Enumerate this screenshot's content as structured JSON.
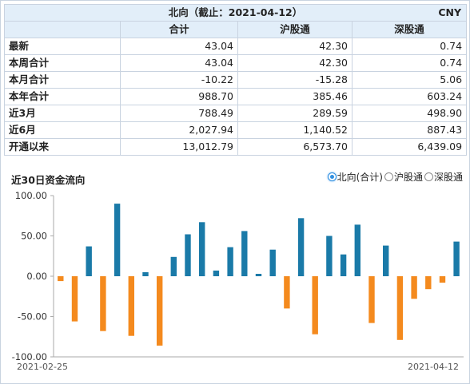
{
  "header": {
    "title": "北向（截止：2021-04-12）",
    "currency": "CNY"
  },
  "table": {
    "columns": [
      "合计",
      "沪股通",
      "深股通"
    ],
    "rows": [
      {
        "label": "最新",
        "values": [
          "43.04",
          "42.30",
          "0.74"
        ]
      },
      {
        "label": "本周合计",
        "values": [
          "43.04",
          "42.30",
          "0.74"
        ]
      },
      {
        "label": "本月合计",
        "values": [
          "-10.22",
          "-15.28",
          "5.06"
        ]
      },
      {
        "label": "本年合计",
        "values": [
          "988.70",
          "385.46",
          "603.24"
        ]
      },
      {
        "label": "近3月",
        "values": [
          "788.49",
          "289.59",
          "498.90"
        ]
      },
      {
        "label": "近6月",
        "values": [
          "2,027.94",
          "1,140.52",
          "887.43"
        ]
      },
      {
        "label": "开通以来",
        "values": [
          "13,012.79",
          "6,573.70",
          "6,439.09"
        ]
      }
    ]
  },
  "chart_section": {
    "title": "近30日资金流向",
    "options": [
      {
        "label": "北向(合计)",
        "selected": true
      },
      {
        "label": "沪股通",
        "selected": false
      },
      {
        "label": "深股通",
        "selected": false
      }
    ]
  },
  "chart_data": {
    "type": "bar",
    "ylim": [
      -100,
      100
    ],
    "y_ticks": [
      "100.00",
      "50.00",
      "0.00",
      "-50.00",
      "-100.00"
    ],
    "x_labels": [
      "2021-02-25",
      "2021-04-12"
    ],
    "colors": {
      "positive": "#1a7aa8",
      "negative": "#f48a1e",
      "axis": "#aaaaaa",
      "grid": "#dddddd"
    },
    "values": [
      -6,
      -56,
      37,
      -68,
      90,
      -74,
      5,
      -86,
      24,
      52,
      67,
      7,
      36,
      56,
      3,
      33,
      -40,
      72,
      -72,
      50,
      27,
      64,
      -58,
      38,
      -79,
      -28,
      -16,
      -8,
      43
    ]
  }
}
